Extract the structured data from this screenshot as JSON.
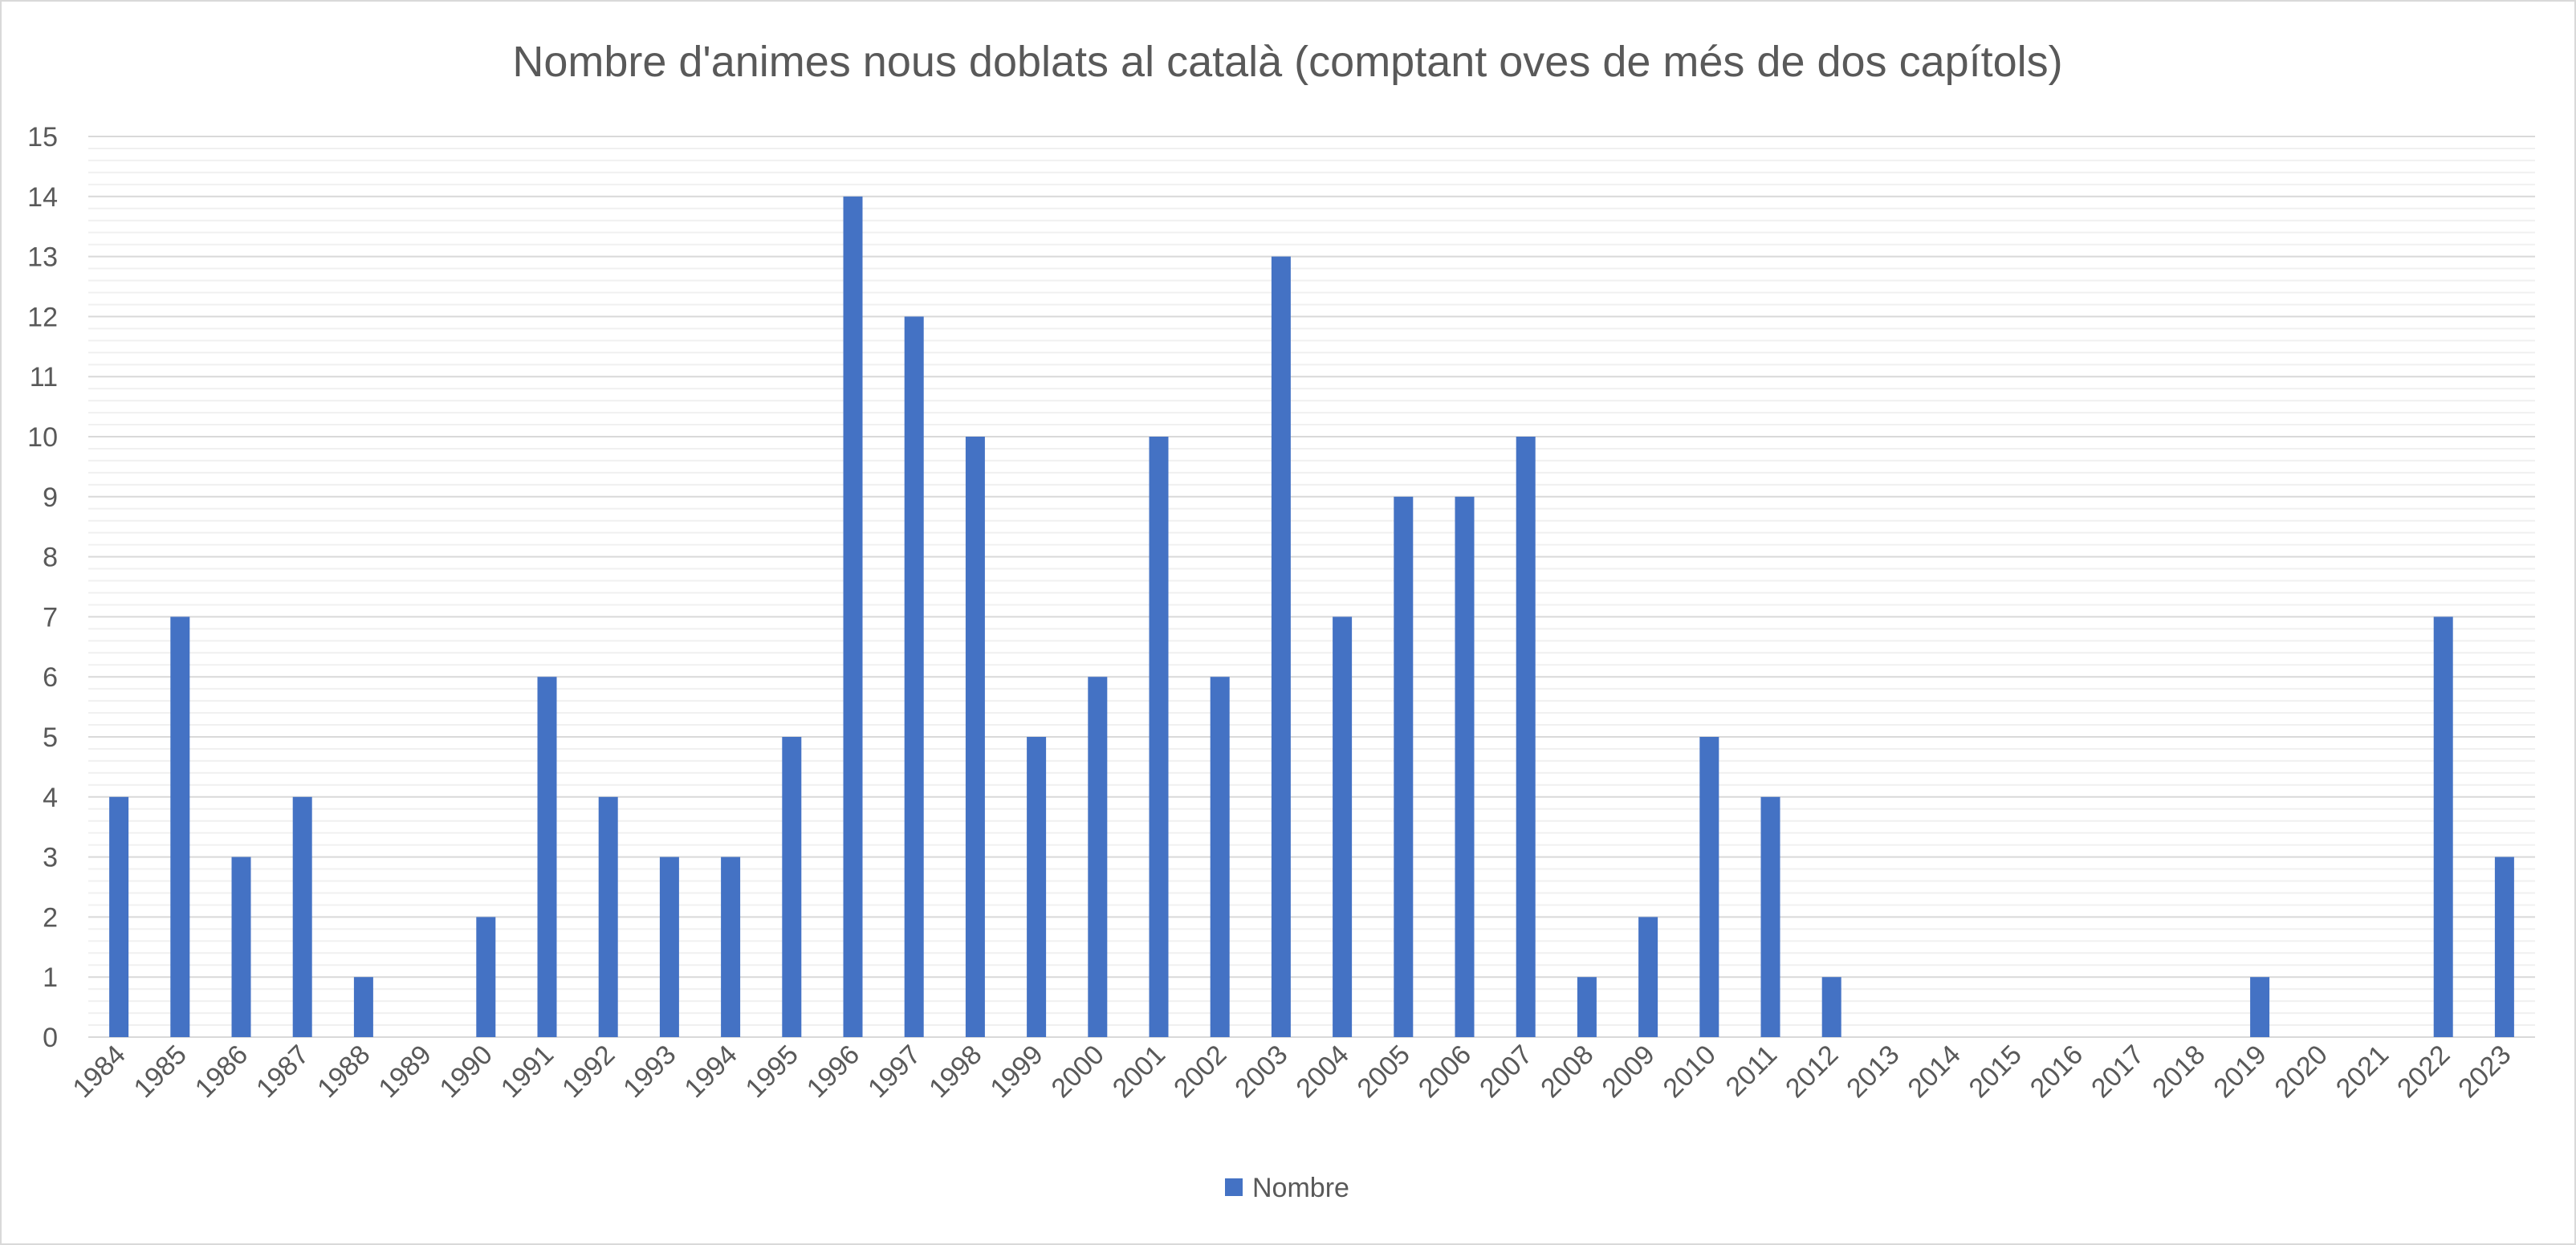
{
  "chart_data": {
    "type": "bar",
    "title": "Nombre d'animes nous doblats al català (comptant oves de més de dos capítols)",
    "xlabel": "",
    "ylabel": "",
    "ylim": [
      0,
      15
    ],
    "y_ticks": [
      "0",
      "1",
      "2",
      "3",
      "4",
      "5",
      "6",
      "7",
      "8",
      "9",
      "10",
      "11",
      "12",
      "13",
      "14",
      "15"
    ],
    "grid": true,
    "legend_position": "bottom",
    "bar_color": "#4472c4",
    "categories": [
      "1984",
      "1985",
      "1986",
      "1987",
      "1988",
      "1989",
      "1990",
      "1991",
      "1992",
      "1993",
      "1994",
      "1995",
      "1996",
      "1997",
      "1998",
      "1999",
      "2000",
      "2001",
      "2002",
      "2003",
      "2004",
      "2005",
      "2006",
      "2007",
      "2008",
      "2009",
      "2010",
      "2011",
      "2012",
      "2013",
      "2014",
      "2015",
      "2016",
      "2017",
      "2018",
      "2019",
      "2020",
      "2021",
      "2022",
      "2023"
    ],
    "series": [
      {
        "name": "Nombre",
        "values": [
          4,
          7,
          3,
          4,
          1,
          0,
          2,
          6,
          4,
          3,
          3,
          5,
          14,
          12,
          10,
          5,
          6,
          10,
          6,
          13,
          7,
          9,
          9,
          10,
          1,
          2,
          5,
          4,
          1,
          0,
          0,
          0,
          0,
          0,
          0,
          1,
          0,
          0,
          7,
          3
        ]
      }
    ]
  }
}
